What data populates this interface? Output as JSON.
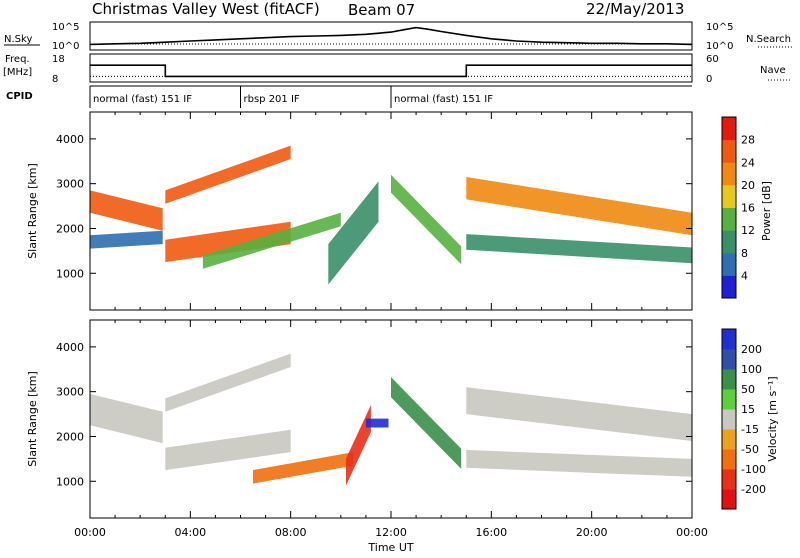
{
  "header": {
    "title": "Christmas Valley West (fitACF)",
    "beam": "Beam 07",
    "date": "22/May/2013"
  },
  "nsky_panel": {
    "label": "N.Sky",
    "left_ticks": [
      "10^5",
      "10^0"
    ],
    "right_ticks": [
      "10^5",
      "10^0"
    ],
    "right_label": "N.Search"
  },
  "freq_panel": {
    "label_line1": "Freq.",
    "label_line2": "[MHz]",
    "left_ticks": [
      "18",
      "8"
    ],
    "right_ticks": [
      "60",
      "0"
    ],
    "right_label": "Nave"
  },
  "cpid_panel": {
    "label": "CPID",
    "segments": [
      {
        "label": "normal (fast) 151 IF",
        "start_hour": 0,
        "end_hour": 6
      },
      {
        "label": "rbsp 201 IF",
        "start_hour": 6,
        "end_hour": 12
      },
      {
        "label": "normal (fast) 151 IF",
        "start_hour": 12,
        "end_hour": 24
      }
    ]
  },
  "x_axis": {
    "label": "Time UT",
    "ticks": [
      "00:00",
      "04:00",
      "08:00",
      "12:00",
      "16:00",
      "20:00",
      "00:00"
    ],
    "tick_hours": [
      0,
      4,
      8,
      12,
      16,
      20,
      24
    ],
    "range_hours": [
      0,
      24
    ]
  },
  "power_panel": {
    "ylabel": "Slant Range [km]",
    "yticks": [
      "1000",
      "2000",
      "3000",
      "4000"
    ],
    "ytick_values": [
      1000,
      2000,
      3000,
      4000
    ],
    "yrange": [
      180,
      4600
    ],
    "colorbar_label": "Power [dB]",
    "colorbar_ticks": [
      "4",
      "8",
      "12",
      "16",
      "20",
      "24",
      "28"
    ],
    "colorbar_values": [
      4,
      8,
      12,
      16,
      20,
      24,
      28
    ],
    "colorbar_range": [
      0,
      32
    ],
    "colorbar_colors": [
      "#1f1fd8",
      "#2e6fb0",
      "#3a8f6a",
      "#58b040",
      "#e6c81e",
      "#f08a12",
      "#f05a10",
      "#e21a10"
    ]
  },
  "velocity_panel": {
    "ylabel": "Slant Range [km]",
    "yticks": [
      "1000",
      "2000",
      "3000",
      "4000"
    ],
    "ytick_values": [
      1000,
      2000,
      3000,
      4000
    ],
    "yrange": [
      180,
      4600
    ],
    "colorbar_label": "Velocity [m s⁻¹]",
    "colorbar_ticks": [
      "200",
      "100",
      "50",
      "15",
      "-15",
      "-50",
      "-100",
      "-200"
    ],
    "colorbar_colors": [
      "#1f2fd0",
      "#3050a8",
      "#3a8f4a",
      "#5ccf3a",
      "#c8c8c0",
      "#f0a020",
      "#f07010",
      "#e83018",
      "#e01010"
    ]
  },
  "chart_data": [
    {
      "type": "line",
      "name": "N.Sky",
      "x_hours": [
        0,
        1,
        2,
        3,
        4,
        5,
        6,
        7,
        8,
        9,
        10,
        11,
        12,
        12.5,
        13,
        13.5,
        14,
        15,
        16,
        17,
        18,
        19,
        20,
        21,
        22,
        23,
        24
      ],
      "values_log10": [
        1.0,
        1.1,
        1.2,
        1.4,
        1.6,
        1.8,
        2.0,
        2.2,
        2.4,
        2.5,
        2.6,
        2.8,
        3.2,
        3.6,
        4.0,
        3.7,
        3.3,
        2.6,
        2.0,
        1.6,
        1.4,
        1.3,
        1.2,
        1.2,
        1.1,
        1.1,
        1.0
      ]
    },
    {
      "type": "line",
      "name": "Freq. [MHz]",
      "steps": [
        {
          "start_hour": 0,
          "end_hour": 3.0,
          "mhz": 14
        },
        {
          "start_hour": 3.0,
          "end_hour": 15.0,
          "mhz": 10
        },
        {
          "start_hour": 15.0,
          "end_hour": 24,
          "mhz": 14
        }
      ],
      "nave_level": 12
    },
    {
      "type": "heatmap",
      "name": "Power [dB]",
      "ylabel": "Slant Range [km]",
      "xlabel": "Time UT",
      "bands": [
        {
          "start_hour": 0.0,
          "end_hour": 2.9,
          "range_start": 2600,
          "range_end": 2200,
          "width": 500,
          "power": 24
        },
        {
          "start_hour": 0.0,
          "end_hour": 2.9,
          "range_start": 1700,
          "range_end": 1800,
          "width": 300,
          "power": 6
        },
        {
          "start_hour": 3.0,
          "end_hour": 8.0,
          "range_start": 2700,
          "range_end": 3700,
          "width": 300,
          "power": 24
        },
        {
          "start_hour": 3.0,
          "end_hour": 8.0,
          "range_start": 1500,
          "range_end": 1900,
          "width": 500,
          "power": 27
        },
        {
          "start_hour": 4.5,
          "end_hour": 10.0,
          "range_start": 1250,
          "range_end": 2200,
          "width": 300,
          "power": 12
        },
        {
          "start_hour": 9.5,
          "end_hour": 11.5,
          "range_start": 1200,
          "range_end": 2600,
          "width": 900,
          "power": 8
        },
        {
          "start_hour": 12.0,
          "end_hour": 14.8,
          "range_start": 3000,
          "range_end": 1400,
          "width": 400,
          "power": 14
        },
        {
          "start_hour": 15.0,
          "end_hour": 24.0,
          "range_start": 2900,
          "range_end": 2100,
          "width": 500,
          "power": 23
        },
        {
          "start_hour": 15.0,
          "end_hour": 24.0,
          "range_start": 1700,
          "range_end": 1400,
          "width": 350,
          "power": 10
        }
      ]
    },
    {
      "type": "heatmap",
      "name": "Velocity [m s⁻¹]",
      "ylabel": "Slant Range [km]",
      "xlabel": "Time UT",
      "bands": [
        {
          "start_hour": 0.0,
          "end_hour": 2.9,
          "range_start": 2600,
          "range_end": 2200,
          "width": 700,
          "velocity": 0
        },
        {
          "start_hour": 3.0,
          "end_hour": 8.0,
          "range_start": 2700,
          "range_end": 3700,
          "width": 300,
          "velocity": 0
        },
        {
          "start_hour": 3.0,
          "end_hour": 8.0,
          "range_start": 1500,
          "range_end": 1900,
          "width": 500,
          "velocity": 0
        },
        {
          "start_hour": 6.5,
          "end_hour": 10.5,
          "range_start": 1100,
          "range_end": 1500,
          "width": 300,
          "velocity": -60
        },
        {
          "start_hour": 10.2,
          "end_hour": 11.2,
          "range_start": 1200,
          "range_end": 2400,
          "width": 600,
          "velocity": -120
        },
        {
          "start_hour": 11.0,
          "end_hour": 11.9,
          "range_start": 2300,
          "range_end": 2300,
          "width": 200,
          "velocity": 200
        },
        {
          "start_hour": 12.0,
          "end_hour": 14.8,
          "range_start": 3100,
          "range_end": 1500,
          "width": 450,
          "velocity": 40
        },
        {
          "start_hour": 15.0,
          "end_hour": 24.0,
          "range_start": 2800,
          "range_end": 2200,
          "width": 600,
          "velocity": 0
        },
        {
          "start_hour": 15.0,
          "end_hour": 24.0,
          "range_start": 1500,
          "range_end": 1300,
          "width": 400,
          "velocity": 0
        }
      ]
    }
  ]
}
